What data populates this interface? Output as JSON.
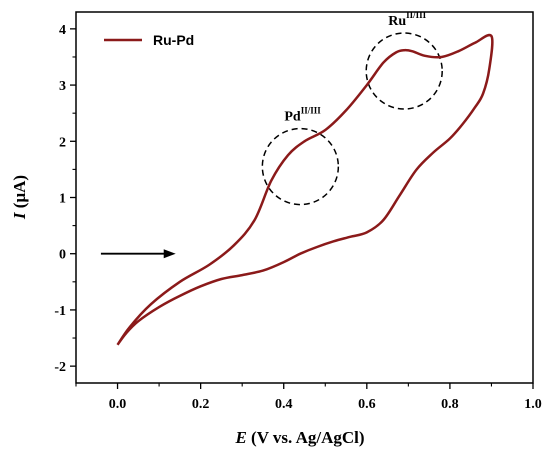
{
  "chart_data": {
    "type": "line",
    "xlabel_italic": "E",
    "xlabel_rest": " (V vs. Ag/AgCl)",
    "ylabel_italic": "I",
    "ylabel_rest": " (μA)",
    "xlim": [
      -0.1,
      1.0
    ],
    "ylim": [
      -2.3,
      4.3
    ],
    "x_ticks": [
      0.0,
      0.2,
      0.4,
      0.6,
      0.8,
      1.0
    ],
    "x_tick_labels": [
      "0.0",
      "0.2",
      "0.4",
      "0.6",
      "0.8",
      "1.0"
    ],
    "y_ticks": [
      -2,
      -1,
      0,
      1,
      2,
      3,
      4
    ],
    "y_tick_labels": [
      "-2",
      "-1",
      "0",
      "1",
      "2",
      "3",
      "4"
    ],
    "grid": false,
    "legend_position": "top-left",
    "series": [
      {
        "name": "Ru-Pd",
        "color": "#8b1a1a",
        "x": [
          0.0,
          0.03,
          0.08,
          0.15,
          0.22,
          0.28,
          0.33,
          0.37,
          0.41,
          0.45,
          0.5,
          0.55,
          0.6,
          0.64,
          0.67,
          0.69,
          0.71,
          0.74,
          0.78,
          0.82,
          0.86,
          0.9,
          0.895,
          0.88,
          0.86,
          0.83,
          0.8,
          0.76,
          0.72,
          0.68,
          0.64,
          0.6,
          0.56,
          0.52,
          0.48,
          0.44,
          0.4,
          0.35,
          0.3,
          0.25,
          0.2,
          0.15,
          0.1,
          0.05,
          0.02,
          0.0
        ],
        "y": [
          -1.62,
          -1.3,
          -0.9,
          -0.5,
          -0.2,
          0.15,
          0.6,
          1.3,
          1.75,
          2.0,
          2.2,
          2.55,
          3.0,
          3.4,
          3.58,
          3.62,
          3.6,
          3.52,
          3.5,
          3.6,
          3.75,
          3.87,
          3.3,
          2.85,
          2.6,
          2.3,
          2.05,
          1.8,
          1.5,
          1.05,
          0.6,
          0.38,
          0.3,
          0.22,
          0.12,
          0.0,
          -0.15,
          -0.3,
          -0.38,
          -0.45,
          -0.58,
          -0.75,
          -0.95,
          -1.2,
          -1.42,
          -1.62
        ]
      }
    ],
    "annotations": [
      {
        "base": "Pd",
        "sup": "II/III",
        "x": 0.44,
        "y": 1.55
      },
      {
        "base": "Ru",
        "sup": "II/III",
        "x": 0.69,
        "y": 3.25
      }
    ],
    "arrow": {
      "from": [
        -0.04,
        0.0
      ],
      "to": [
        0.14,
        0.0
      ],
      "direction": "right"
    }
  }
}
